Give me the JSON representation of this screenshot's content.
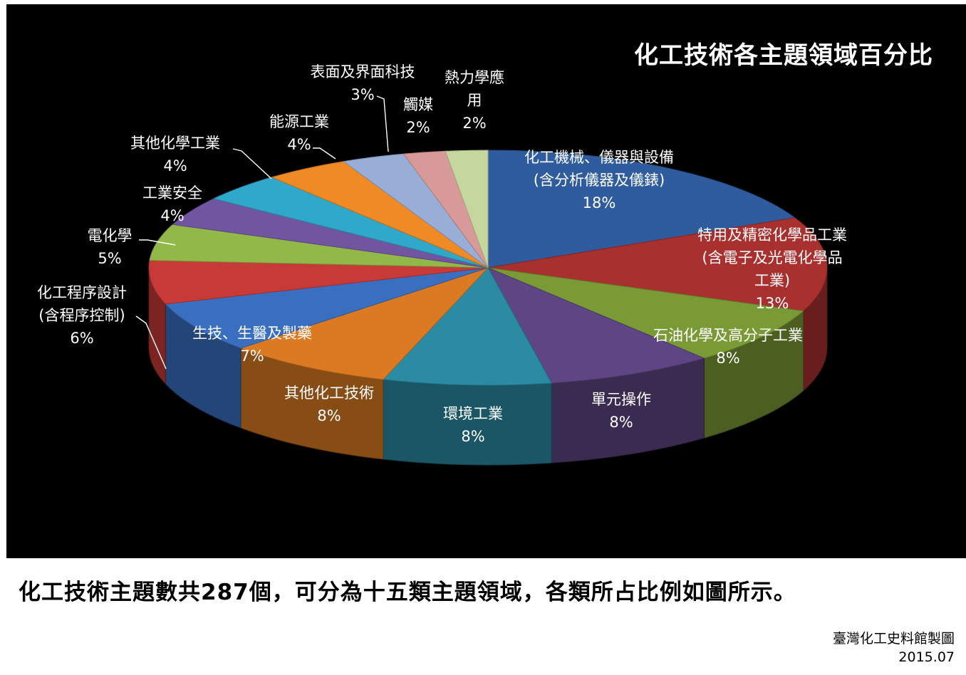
{
  "chart_data": {
    "type": "pie",
    "title": "化工技術各主題領域百分比",
    "slices": [
      {
        "label": "化工機械、儀器與設備\n(含分析儀器及儀錶)",
        "value": 18,
        "value_label": "18%",
        "color": "#2E5C9E"
      },
      {
        "label": "特用及精密化學品工業\n(含電子及光電化學品\n工業)",
        "value": 13,
        "value_label": "13%",
        "color": "#A8302F"
      },
      {
        "label": "石油化學及高分子工業",
        "value": 8,
        "value_label": "8%",
        "color": "#7A9A36"
      },
      {
        "label": "單元操作",
        "value": 8,
        "value_label": "8%",
        "color": "#5E4583"
      },
      {
        "label": "環境工業",
        "value": 8,
        "value_label": "8%",
        "color": "#2A8BA3"
      },
      {
        "label": "其他化工技術",
        "value": 8,
        "value_label": "8%",
        "color": "#DB7A22"
      },
      {
        "label": "生技、生醫及製藥",
        "value": 7,
        "value_label": "7%",
        "color": "#3A6FC0"
      },
      {
        "label": "化工程序設計\n(含程序控制)",
        "value": 6,
        "value_label": "6%",
        "color": "#C73A37"
      },
      {
        "label": "電化學",
        "value": 5,
        "value_label": "5%",
        "color": "#92B849"
      },
      {
        "label": "工業安全",
        "value": 4,
        "value_label": "4%",
        "color": "#7255A0"
      },
      {
        "label": "其他化學工業",
        "value": 4,
        "value_label": "4%",
        "color": "#2FA8C9"
      },
      {
        "label": "能源工業",
        "value": 4,
        "value_label": "4%",
        "color": "#F08A24"
      },
      {
        "label": "表面及界面科技",
        "value": 3,
        "value_label": "3%",
        "color": "#98AED6"
      },
      {
        "label": "觸媒",
        "value": 2,
        "value_label": "2%",
        "color": "#D79A98"
      },
      {
        "label": "熱力學應\n用",
        "value": 2,
        "value_label": "2%",
        "color": "#C5D79E"
      }
    ]
  },
  "caption": "化工技術主題數共287個，可分為十五類主題領域，各類所占比例如圖所示。",
  "credit": {
    "line1": "臺灣化工史料館製圖",
    "line2": "2015.07"
  }
}
